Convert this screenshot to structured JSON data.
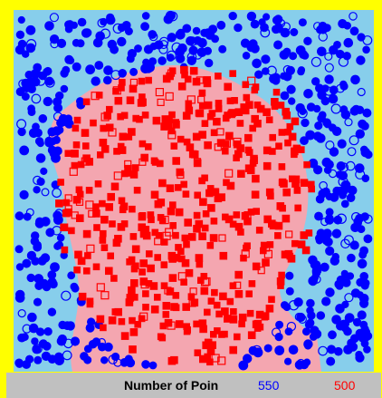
{
  "status_bar": {
    "label": "Number of Poin",
    "blue_count": "550",
    "red_count": "500"
  },
  "colors": {
    "frame": "#ffff00",
    "blue_region": "#87ceeb",
    "red_region": "#f4a6b0",
    "blue_points": "#0000ff",
    "red_points": "#ff0000",
    "status_background": "#c0c0c0"
  },
  "legend": {
    "blue_marker": "circle",
    "red_marker": "square",
    "filled_and_hollow": true
  }
}
